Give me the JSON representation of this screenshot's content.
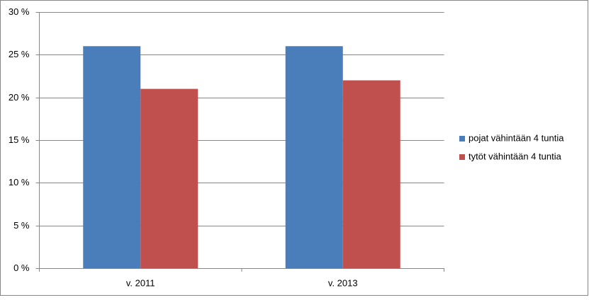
{
  "chart_data": {
    "type": "bar",
    "categories": [
      "v. 2011",
      "v. 2013"
    ],
    "series": [
      {
        "name": "pojat vähintään 4 tuntia",
        "color": "#4a7ebb",
        "values": [
          26,
          26
        ]
      },
      {
        "name": "tytöt vähintään 4 tuntia",
        "color": "#c0504d",
        "values": [
          21,
          22
        ]
      }
    ],
    "ylim": [
      0,
      30
    ],
    "yticks": [
      {
        "value": 0,
        "label": "0 %"
      },
      {
        "value": 5,
        "label": "5 %"
      },
      {
        "value": 10,
        "label": "10 %"
      },
      {
        "value": 15,
        "label": "15 %"
      },
      {
        "value": 20,
        "label": "20 %"
      },
      {
        "value": 25,
        "label": "25 %"
      },
      {
        "value": 30,
        "label": "30 %"
      }
    ],
    "grid": true,
    "legend": "right"
  }
}
